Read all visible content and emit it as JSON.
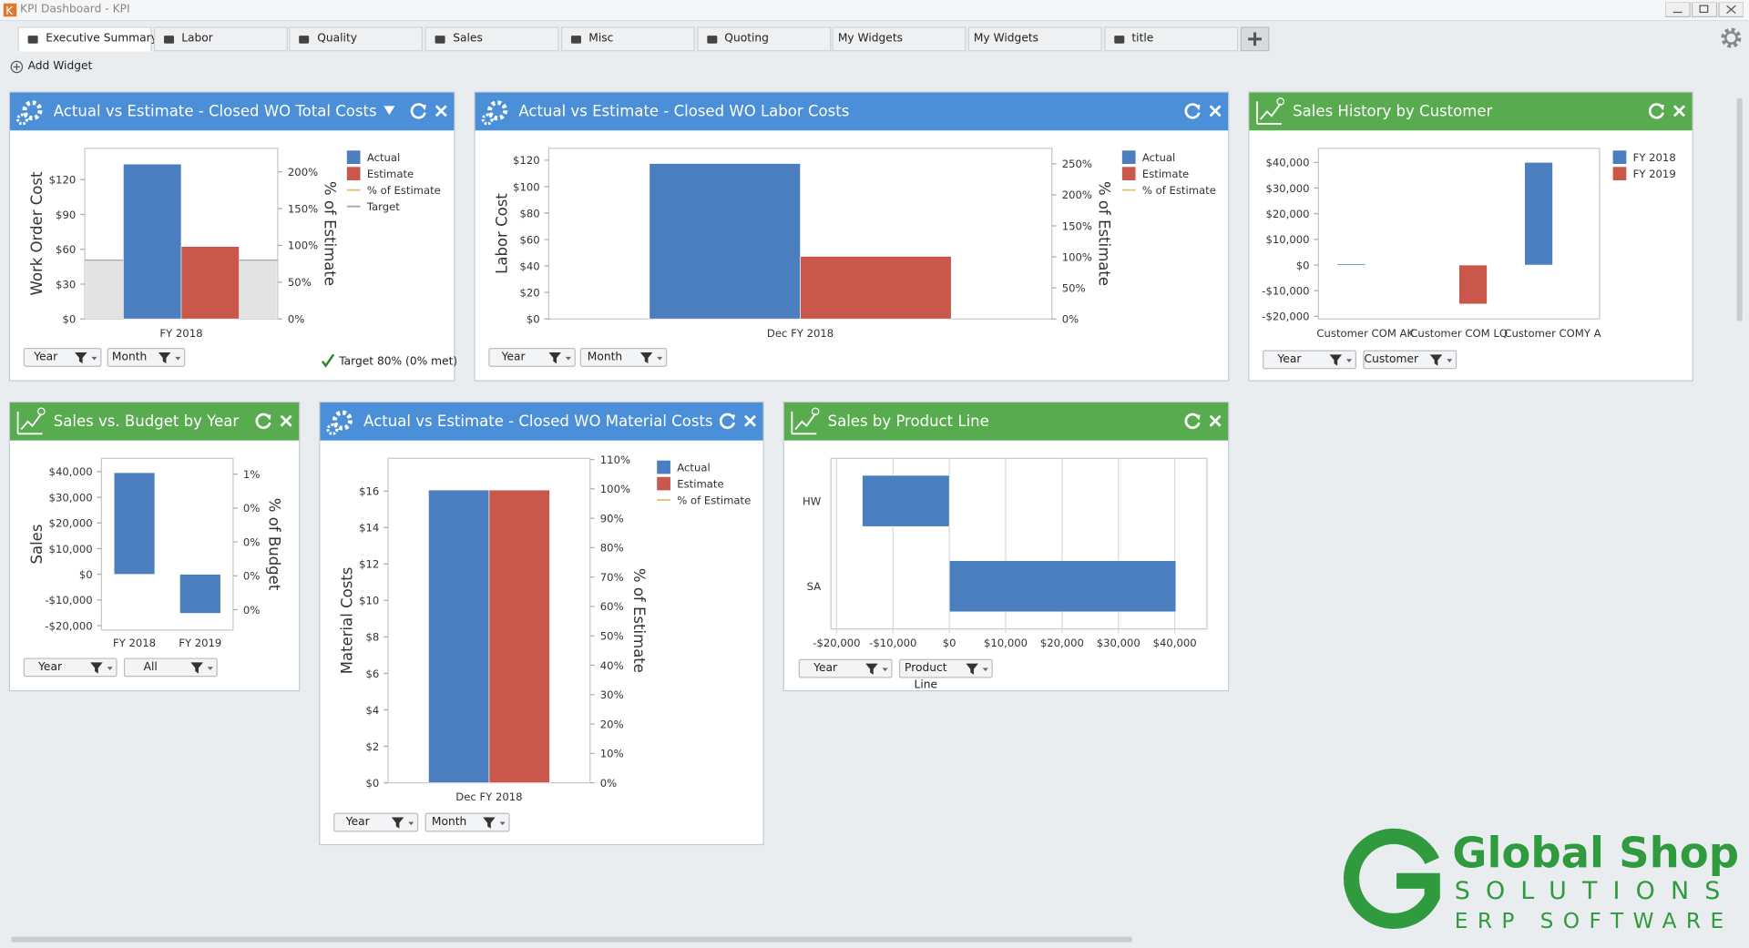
{
  "window_title": "KPI Dashboard - KPI",
  "tabs": [
    "Executive Summary",
    "Labor",
    "Quality",
    "Sales",
    "Misc",
    "Quoting",
    "My Widgets",
    "My Widgets",
    "title"
  ],
  "add_widget": "Add Widget",
  "widgets": [
    {
      "title": "Actual vs Estimate - Closed WO Total Costs",
      "filters": [
        "Year",
        "Month"
      ],
      "note": "Target 80% (0% met)",
      "chart_data": {
        "type": "bar",
        "categories": [
          "FY 2018"
        ],
        "series": [
          {
            "name": "Actual",
            "color": "#4a7ebf",
            "values": [
              133.4
            ]
          },
          {
            "name": "Estimate",
            "color": "#c9574b",
            "values": [
              62.4
            ]
          },
          {
            "name": "% of Estimate",
            "color": "#e3c07b",
            "type": "line",
            "axis": "y2",
            "values": [
              null
            ]
          },
          {
            "name": "Target",
            "color": "#a6a6a6",
            "type": "target",
            "axis": "y2",
            "values": [
              80
            ]
          }
        ],
        "y_label": "Work Order Cost",
        "y2_label": "% of Estimate",
        "ylim": [
          0,
          147
        ],
        "yticks": [
          {
            "value": 0,
            "label": "$0"
          },
          {
            "value": 30,
            "label": "$30"
          },
          {
            "value": 60,
            "label": "$60"
          },
          {
            "value": 90,
            "label": "$90"
          },
          {
            "value": 120,
            "label": "$120"
          }
        ],
        "y2lim": [
          0,
          232
        ],
        "y2ticks": [
          {
            "value": 0,
            "label": "0%"
          },
          {
            "value": 50,
            "label": "50%"
          },
          {
            "value": 100,
            "label": "100%"
          },
          {
            "value": 150,
            "label": "150%"
          },
          {
            "value": 200,
            "label": "200%"
          }
        ],
        "grid": false
      }
    },
    {
      "title": "Actual vs Estimate - Closed WO Labor Costs",
      "filters": [
        "Year",
        "Month"
      ],
      "chart_data": {
        "type": "bar",
        "categories": [
          "Dec FY 2018"
        ],
        "series": [
          {
            "name": "Actual",
            "color": "#4a7ebf",
            "values": [
              117.5
            ]
          },
          {
            "name": "Estimate",
            "color": "#c9574b",
            "values": [
              47.3
            ]
          },
          {
            "name": "% of Estimate",
            "color": "#e3c07b",
            "type": "line",
            "axis": "y2",
            "values": [
              null
            ]
          }
        ],
        "y_label": "Labor Cost",
        "y2_label": "% of Estimate",
        "ylim": [
          0,
          129
        ],
        "yticks": [
          {
            "value": 0,
            "label": "$0"
          },
          {
            "value": 20,
            "label": "$20"
          },
          {
            "value": 40,
            "label": "$40"
          },
          {
            "value": 60,
            "label": "$60"
          },
          {
            "value": 80,
            "label": "$80"
          },
          {
            "value": 100,
            "label": "$100"
          },
          {
            "value": 120,
            "label": "$120"
          }
        ],
        "y2lim": [
          0,
          275
        ],
        "y2ticks": [
          {
            "value": 0,
            "label": "0%"
          },
          {
            "value": 50,
            "label": "50%"
          },
          {
            "value": 100,
            "label": "100%"
          },
          {
            "value": 150,
            "label": "150%"
          },
          {
            "value": 200,
            "label": "200%"
          },
          {
            "value": 250,
            "label": "250%"
          }
        ],
        "grid": false
      }
    },
    {
      "title": "Sales History by Customer",
      "filters": [
        "Year",
        "Customer"
      ],
      "chart_data": {
        "type": "bar",
        "categories": [
          "Customer COM AK",
          "Customer COM LQ",
          "Customer COMY A"
        ],
        "series": [
          {
            "name": "FY 2018",
            "color": "#4a7ebf",
            "values": [
              500,
              null,
              40000
            ]
          },
          {
            "name": "FY 2019",
            "color": "#c9574b",
            "values": [
              null,
              -15200,
              null
            ]
          }
        ],
        "ylim": [
          -21000,
          45500
        ],
        "yticks": [
          {
            "value": -20000,
            "label": "-$20,000"
          },
          {
            "value": -10000,
            "label": "-$10,000"
          },
          {
            "value": 0,
            "label": "$0"
          },
          {
            "value": 10000,
            "label": "$10,000"
          },
          {
            "value": 20000,
            "label": "$20,000"
          },
          {
            "value": 30000,
            "label": "$30,000"
          },
          {
            "value": 40000,
            "label": "$40,000"
          }
        ],
        "grid": false
      }
    },
    {
      "title": "Sales vs. Budget by Year",
      "filters": [
        "Year",
        "All"
      ],
      "chart_data": {
        "type": "bar",
        "categories": [
          "FY 2018",
          "FY 2019"
        ],
        "values": [
          39600,
          -15200
        ],
        "color": "#4a7ebf",
        "y_label": "Sales",
        "y2_label": "% of Budget",
        "ylim": [
          -21700,
          45200
        ],
        "yticks": [
          {
            "value": -20000,
            "label": "-$20,000"
          },
          {
            "value": -10000,
            "label": "-$10,000"
          },
          {
            "value": 0,
            "label": "$0"
          },
          {
            "value": 10000,
            "label": "$10,000"
          },
          {
            "value": 20000,
            "label": "$20,000"
          },
          {
            "value": 30000,
            "label": "$30,000"
          },
          {
            "value": 40000,
            "label": "$40,000"
          }
        ],
        "y2lim": [
          -0.09,
          0.67
        ],
        "y2ticks": [
          {
            "value": 0,
            "label": "0%"
          },
          {
            "value": 0.15,
            "label": "0%"
          },
          {
            "value": 0.3,
            "label": "0%"
          },
          {
            "value": 0.45,
            "label": "0%"
          },
          {
            "value": 0.6,
            "label": "1%"
          }
        ],
        "grid": false
      }
    },
    {
      "title": "Actual vs Estimate - Closed WO Material Costs",
      "filters": [
        "Year",
        "Month"
      ],
      "chart_data": {
        "type": "bar",
        "categories": [
          "Dec FY 2018"
        ],
        "series": [
          {
            "name": "Actual",
            "color": "#4a7ebf",
            "values": [
              16.06
            ]
          },
          {
            "name": "Estimate",
            "color": "#c9574b",
            "values": [
              16.06
            ]
          },
          {
            "name": "% of Estimate",
            "color": "#e3c07b",
            "type": "line",
            "axis": "y2",
            "values": [
              null
            ]
          }
        ],
        "y_label": "Material Costs",
        "y2_label": "% of Estimate",
        "ylim": [
          0,
          17.8
        ],
        "yticks": [
          {
            "value": 0,
            "label": "$0"
          },
          {
            "value": 2,
            "label": "$2"
          },
          {
            "value": 4,
            "label": "$4"
          },
          {
            "value": 6,
            "label": "$6"
          },
          {
            "value": 8,
            "label": "$8"
          },
          {
            "value": 10,
            "label": "$10"
          },
          {
            "value": 12,
            "label": "$12"
          },
          {
            "value": 14,
            "label": "$14"
          },
          {
            "value": 16,
            "label": "$16"
          }
        ],
        "y2lim": [
          0,
          110.4
        ],
        "y2ticks": [
          {
            "value": 0,
            "label": "0%"
          },
          {
            "value": 10,
            "label": "10%"
          },
          {
            "value": 20,
            "label": "20%"
          },
          {
            "value": 30,
            "label": "30%"
          },
          {
            "value": 40,
            "label": "40%"
          },
          {
            "value": 50,
            "label": "50%"
          },
          {
            "value": 60,
            "label": "60%"
          },
          {
            "value": 70,
            "label": "70%"
          },
          {
            "value": 80,
            "label": "80%"
          },
          {
            "value": 90,
            "label": "90%"
          },
          {
            "value": 100,
            "label": "100%"
          },
          {
            "value": 110,
            "label": "110%"
          }
        ],
        "grid": false
      }
    },
    {
      "title": "Sales by Product Line",
      "filters": [
        "Year",
        "Product Line"
      ],
      "chart_data": {
        "type": "hbar",
        "categories": [
          "HW",
          "SA"
        ],
        "values": [
          -15450,
          40200
        ],
        "color": "#4a7ebf",
        "xlim": [
          -21000,
          45700
        ],
        "xticks": [
          {
            "value": -20000,
            "label": "-$20,000"
          },
          {
            "value": -10000,
            "label": "-$10,000"
          },
          {
            "value": 0,
            "label": "$0"
          },
          {
            "value": 10000,
            "label": "$10,000"
          },
          {
            "value": 20000,
            "label": "$20,000"
          },
          {
            "value": 30000,
            "label": "$30,000"
          },
          {
            "value": 40000,
            "label": "$40,000"
          }
        ],
        "grid": true
      }
    }
  ],
  "logo": {
    "line1": "Global Shop",
    "line2": "SOLUTIONS",
    "line3": "ERP SOFTWARE"
  }
}
